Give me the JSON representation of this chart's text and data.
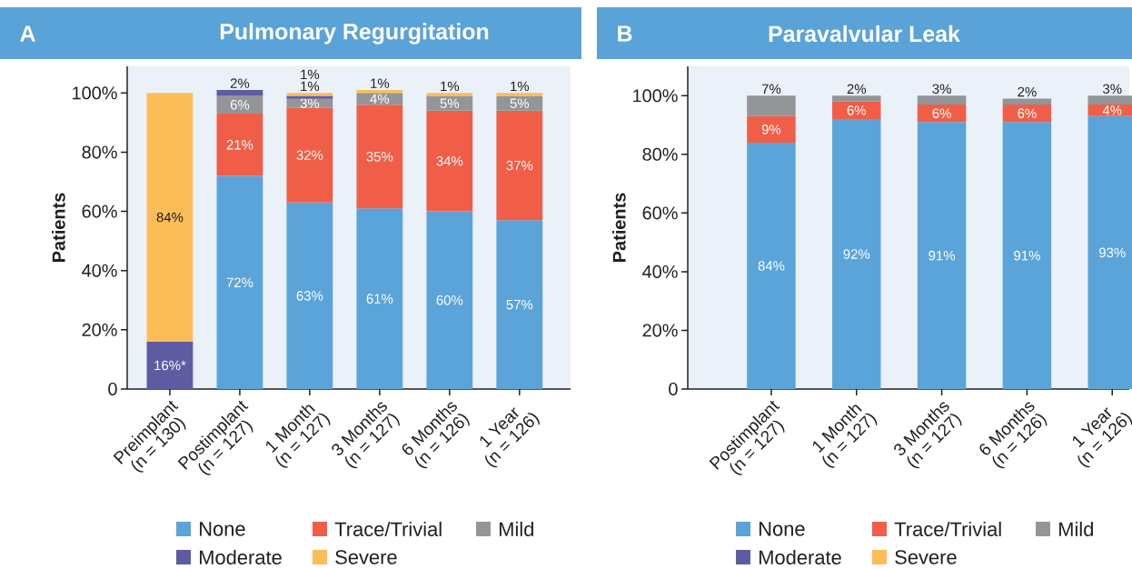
{
  "chart_data": [
    {
      "type": "bar",
      "title": "Pulmonary Regurgitation",
      "annotations": [
        "A"
      ],
      "ylabel": "Patients",
      "stacked": true,
      "legend": "bottom",
      "categories": [
        "Preimplant\n(n = 130)",
        "Postimplant\n(n = 127)",
        "1 Month\n(n = 127)",
        "3 Months\n(n = 127)",
        "6 Months\n(n = 126)",
        "1 Year\n(n = 126)"
      ],
      "ylim": [
        0,
        109
      ],
      "yticks": [
        {
          "value": 0,
          "label": "0"
        },
        {
          "value": 20,
          "label": "20%"
        },
        {
          "value": 40,
          "label": "40%"
        },
        {
          "value": 60,
          "label": "60%"
        },
        {
          "value": 80,
          "label": "80%"
        },
        {
          "value": 100,
          "label": "100%"
        }
      ],
      "series": [
        {
          "name": "None",
          "color": "#5ba4d9",
          "values": [
            null,
            72,
            63,
            61,
            60,
            57
          ],
          "value_labels": [
            null,
            "72%",
            "63%",
            "61%",
            "60%",
            "57%"
          ]
        },
        {
          "name": "Trace/Trivial",
          "color": "#f05e48",
          "values": [
            null,
            21,
            32,
            35,
            34,
            37
          ],
          "value_labels": [
            null,
            "21%",
            "32%",
            "35%",
            "34%",
            "37%"
          ]
        },
        {
          "name": "Mild",
          "color": "#939598",
          "values": [
            null,
            6,
            3,
            4,
            5,
            5
          ],
          "value_labels": [
            null,
            "6%",
            "3%",
            "4%",
            "5%",
            "5%"
          ]
        },
        {
          "name": "Moderate",
          "color": "#5f5ba3",
          "values": [
            16,
            2,
            1,
            null,
            null,
            null
          ],
          "value_labels": [
            "16%*",
            "2%",
            "1%",
            null,
            null,
            null
          ]
        },
        {
          "name": "Severe",
          "color": "#fcbd58",
          "values": [
            84,
            null,
            1,
            1,
            1,
            1
          ],
          "value_labels": [
            "84%",
            null,
            "1%",
            "1%",
            "1%",
            "1%"
          ]
        }
      ]
    },
    {
      "type": "bar",
      "title": "Paravalvular Leak",
      "annotations": [
        "B"
      ],
      "ylabel": "Patients",
      "stacked": true,
      "legend": "bottom",
      "categories": [
        "Postimplant\n(n = 127)",
        "1 Month\n(n = 127)",
        "3 Months\n(n = 127)",
        "6 Months\n(n = 126)",
        "1 Year\n(n = 126)"
      ],
      "ylim": [
        0,
        110
      ],
      "yticks": [
        {
          "value": 0,
          "label": "0"
        },
        {
          "value": 20,
          "label": "20%"
        },
        {
          "value": 40,
          "label": "40%"
        },
        {
          "value": 60,
          "label": "60%"
        },
        {
          "value": 80,
          "label": "80%"
        },
        {
          "value": 100,
          "label": "100%"
        }
      ],
      "series": [
        {
          "name": "None",
          "color": "#5ba4d9",
          "values": [
            84,
            92,
            91,
            91,
            93
          ],
          "value_labels": [
            "84%",
            "92%",
            "91%",
            "91%",
            "93%"
          ]
        },
        {
          "name": "Trace/Trivial",
          "color": "#f05e48",
          "values": [
            9,
            6,
            6,
            6,
            4
          ],
          "value_labels": [
            "9%",
            "6%",
            "6%",
            "6%",
            "4%"
          ]
        },
        {
          "name": "Mild",
          "color": "#939598",
          "values": [
            7,
            2,
            3,
            2,
            3
          ],
          "value_labels": [
            "7%",
            "2%",
            "3%",
            "2%",
            "3%"
          ]
        },
        {
          "name": "Moderate",
          "color": "#5f5ba3",
          "values": [
            null,
            null,
            null,
            null,
            null
          ]
        },
        {
          "name": "Severe",
          "color": "#fcbd58",
          "values": [
            null,
            null,
            null,
            null,
            null
          ]
        }
      ]
    }
  ]
}
